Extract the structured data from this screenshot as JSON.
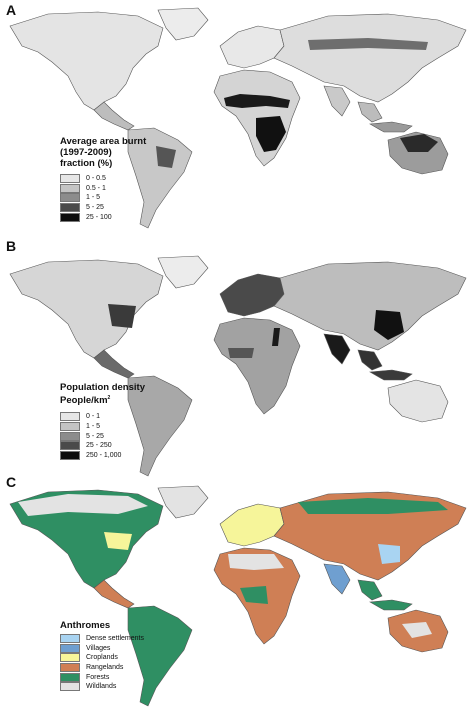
{
  "panels": [
    {
      "letter": "A",
      "legend_title_lines": [
        "Average area burnt",
        "(1997-2009)",
        "fraction (%)"
      ],
      "legend_items": [
        {
          "label": "0 - 0.5",
          "color": "#e6e6e6"
        },
        {
          "label": "0.5 - 1",
          "color": "#c4c4c4"
        },
        {
          "label": "1 - 5",
          "color": "#8c8c8c"
        },
        {
          "label": "5 - 25",
          "color": "#4a4a4a"
        },
        {
          "label": "25 - 100",
          "color": "#0d0d0d"
        }
      ]
    },
    {
      "letter": "B",
      "legend_title_lines": [
        "Population density",
        "People/km"
      ],
      "legend_title_superscript": "2",
      "legend_items": [
        {
          "label": "0 - 1",
          "color": "#e6e6e6"
        },
        {
          "label": "1 - 5",
          "color": "#c4c4c4"
        },
        {
          "label": "5 - 25",
          "color": "#8c8c8c"
        },
        {
          "label": "25 - 250",
          "color": "#4a4a4a"
        },
        {
          "label": "250 - 1,000",
          "color": "#0d0d0d"
        }
      ]
    },
    {
      "letter": "C",
      "legend_title_lines": [
        "Anthromes"
      ],
      "legend_items": [
        {
          "label": "Dense settlements",
          "color": "#a9d4f2"
        },
        {
          "label": "Villages",
          "color": "#6f9fd0"
        },
        {
          "label": "Croplands",
          "color": "#f6f59a"
        },
        {
          "label": "Rangelands",
          "color": "#cf7f55"
        },
        {
          "label": "Forests",
          "color": "#2f8f63"
        },
        {
          "label": "Wildlands",
          "color": "#e3e3e3"
        }
      ]
    }
  ],
  "colors": {
    "ocean": "#ffffff",
    "border": "#555555",
    "land_light": "#e4e4e4"
  }
}
